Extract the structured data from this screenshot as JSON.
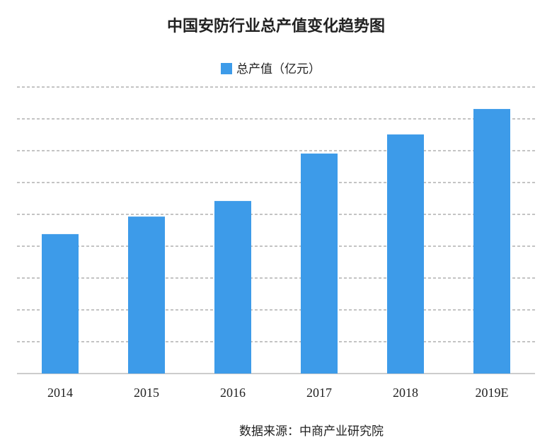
{
  "chart_data": {
    "type": "bar",
    "title": "中国安防行业总产值变化趋势图",
    "legend": "总产值（亿元）",
    "categories": [
      "2014",
      "2015",
      "2016",
      "2017",
      "2018",
      "2019E"
    ],
    "values": [
      4380,
      4930,
      5420,
      6910,
      7510,
      8310
    ],
    "color": "#3d9be9",
    "ylim": [
      0,
      9000
    ],
    "yticks": [
      0,
      1000,
      2000,
      3000,
      4000,
      5000,
      6000,
      7000,
      8000,
      9000
    ],
    "grid": true,
    "source": "数据来源：中商产业研究院"
  }
}
